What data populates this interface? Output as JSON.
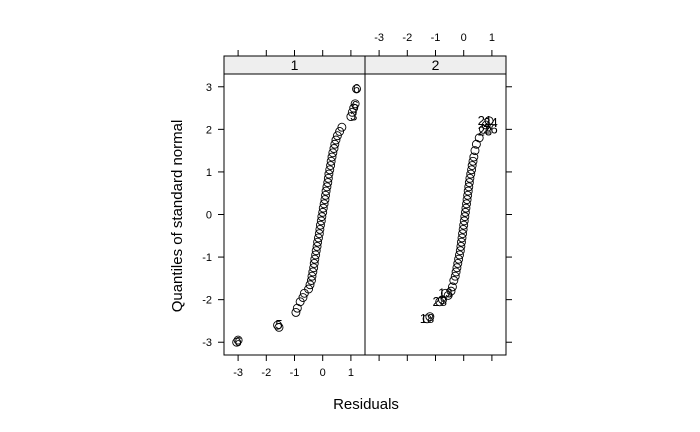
{
  "chart_data": {
    "type": "scatter",
    "xlabel": "Residuals",
    "ylabel": "Quantiles of standard normal",
    "xlim": [
      -3.5,
      1.5
    ],
    "ylim": [
      -3.3,
      3.3
    ],
    "x_ticks": [
      -3,
      -2,
      -1,
      0,
      1
    ],
    "y_ticks": [
      -3,
      -2,
      -1,
      0,
      1,
      2,
      3
    ],
    "panels": [
      {
        "strip": "1",
        "x_axis_side": "bottom",
        "labels": [
          {
            "text": "6",
            "x": -3.0,
            "y": -3.0
          },
          {
            "text": "5",
            "x": -1.55,
            "y": -2.6
          },
          {
            "text": "6",
            "x": 1.2,
            "y": 2.95
          },
          {
            "text": "6",
            "x": 1.15,
            "y": 2.55
          },
          {
            "text": "3",
            "x": 1.1,
            "y": 2.3
          }
        ],
        "points": [
          [
            -3.05,
            -3.0
          ],
          [
            -3.0,
            -2.95
          ],
          [
            -1.6,
            -2.6
          ],
          [
            -1.55,
            -2.65
          ],
          [
            -0.95,
            -2.3
          ],
          [
            -0.9,
            -2.2
          ],
          [
            -0.8,
            -2.05
          ],
          [
            -0.7,
            -1.95
          ],
          [
            -0.65,
            -1.85
          ],
          [
            -0.5,
            -1.75
          ],
          [
            -0.45,
            -1.65
          ],
          [
            -0.4,
            -1.55
          ],
          [
            -0.38,
            -1.45
          ],
          [
            -0.35,
            -1.35
          ],
          [
            -0.32,
            -1.25
          ],
          [
            -0.3,
            -1.15
          ],
          [
            -0.28,
            -1.05
          ],
          [
            -0.25,
            -0.95
          ],
          [
            -0.23,
            -0.85
          ],
          [
            -0.2,
            -0.75
          ],
          [
            -0.18,
            -0.65
          ],
          [
            -0.15,
            -0.55
          ],
          [
            -0.12,
            -0.45
          ],
          [
            -0.1,
            -0.35
          ],
          [
            -0.08,
            -0.25
          ],
          [
            -0.05,
            -0.15
          ],
          [
            -0.03,
            -0.05
          ],
          [
            0.0,
            0.05
          ],
          [
            0.02,
            0.15
          ],
          [
            0.05,
            0.25
          ],
          [
            0.08,
            0.35
          ],
          [
            0.1,
            0.45
          ],
          [
            0.12,
            0.55
          ],
          [
            0.15,
            0.65
          ],
          [
            0.18,
            0.75
          ],
          [
            0.2,
            0.85
          ],
          [
            0.22,
            0.95
          ],
          [
            0.25,
            1.05
          ],
          [
            0.28,
            1.15
          ],
          [
            0.3,
            1.25
          ],
          [
            0.33,
            1.35
          ],
          [
            0.36,
            1.45
          ],
          [
            0.4,
            1.55
          ],
          [
            0.43,
            1.65
          ],
          [
            0.47,
            1.75
          ],
          [
            0.52,
            1.85
          ],
          [
            0.6,
            1.95
          ],
          [
            0.68,
            2.05
          ],
          [
            1.0,
            2.3
          ],
          [
            1.05,
            2.4
          ],
          [
            1.1,
            2.5
          ],
          [
            1.15,
            2.6
          ],
          [
            1.2,
            2.95
          ]
        ]
      },
      {
        "strip": "2",
        "x_axis_side": "top",
        "labels": [
          {
            "text": "18",
            "x": -1.3,
            "y": -2.45
          },
          {
            "text": "28",
            "x": -0.85,
            "y": -2.05
          },
          {
            "text": "13",
            "x": -0.65,
            "y": -1.85
          },
          {
            "text": "21",
            "x": 0.75,
            "y": 2.2
          },
          {
            "text": "24",
            "x": 0.95,
            "y": 2.15
          },
          {
            "text": "23",
            "x": 0.75,
            "y": 1.95
          },
          {
            "text": "26",
            "x": 0.95,
            "y": 2.0
          }
        ],
        "points": [
          [
            -1.3,
            -2.45
          ],
          [
            -1.2,
            -2.4
          ],
          [
            -0.85,
            -2.05
          ],
          [
            -0.75,
            -2.0
          ],
          [
            -0.65,
            -1.85
          ],
          [
            -0.55,
            -1.9
          ],
          [
            -0.45,
            -1.8
          ],
          [
            -0.4,
            -1.7
          ],
          [
            -0.35,
            -1.55
          ],
          [
            -0.3,
            -1.45
          ],
          [
            -0.27,
            -1.35
          ],
          [
            -0.24,
            -1.25
          ],
          [
            -0.21,
            -1.15
          ],
          [
            -0.18,
            -1.05
          ],
          [
            -0.15,
            -0.95
          ],
          [
            -0.12,
            -0.85
          ],
          [
            -0.1,
            -0.75
          ],
          [
            -0.08,
            -0.65
          ],
          [
            -0.06,
            -0.55
          ],
          [
            -0.04,
            -0.45
          ],
          [
            -0.02,
            -0.35
          ],
          [
            0.0,
            -0.25
          ],
          [
            0.02,
            -0.15
          ],
          [
            0.04,
            -0.05
          ],
          [
            0.06,
            0.05
          ],
          [
            0.08,
            0.15
          ],
          [
            0.1,
            0.25
          ],
          [
            0.12,
            0.35
          ],
          [
            0.14,
            0.45
          ],
          [
            0.16,
            0.55
          ],
          [
            0.18,
            0.65
          ],
          [
            0.2,
            0.75
          ],
          [
            0.22,
            0.85
          ],
          [
            0.25,
            0.95
          ],
          [
            0.28,
            1.05
          ],
          [
            0.3,
            1.15
          ],
          [
            0.33,
            1.25
          ],
          [
            0.36,
            1.35
          ],
          [
            0.4,
            1.5
          ],
          [
            0.45,
            1.65
          ],
          [
            0.55,
            1.8
          ],
          [
            0.7,
            2.0
          ],
          [
            0.8,
            2.1
          ],
          [
            0.9,
            2.2
          ]
        ]
      }
    ]
  }
}
